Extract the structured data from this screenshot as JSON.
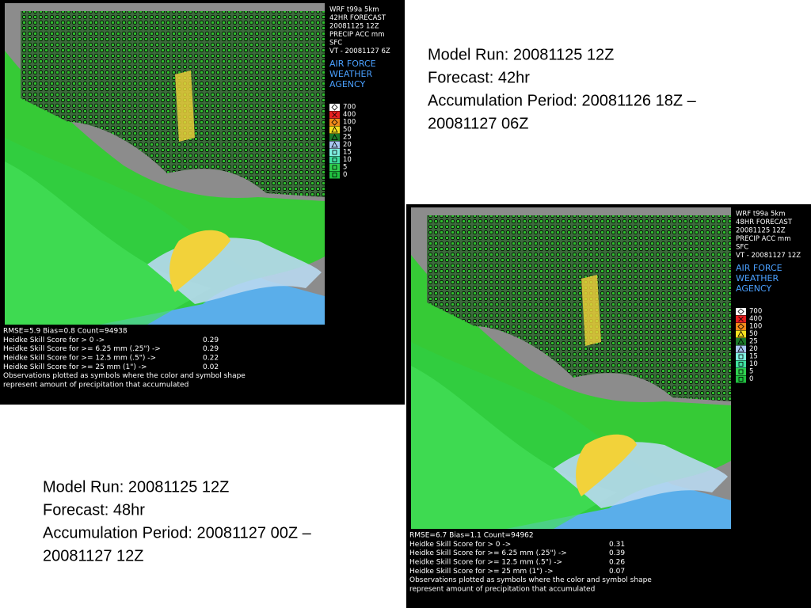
{
  "panels": [
    {
      "header": [
        "WRF t99a 5km",
        "42HR FORECAST",
        "20081125 12Z",
        "PRECIP ACC mm",
        "SFC",
        "VT - 20081127 6Z"
      ],
      "agency": [
        "AIR FORCE",
        "WEATHER",
        "AGENCY"
      ],
      "legend": [
        "700",
        "400",
        "100",
        "50",
        "25",
        "20",
        "15",
        "10",
        "5",
        "0"
      ],
      "stats": {
        "summary": "RMSE=5.9 Bias=0.8 Count=94938",
        "scores": [
          {
            "label": "Heidke Skill Score for >  0   ->",
            "value": "0.29"
          },
          {
            "label": "Heidke Skill Score for >= 6.25 mm (.25\") ->",
            "value": "0.29"
          },
          {
            "label": "Heidke Skill Score for >= 12.5 mm (.5\") ->",
            "value": "0.22"
          },
          {
            "label": "Heidke Skill Score for >= 25 mm (1\") ->",
            "value": "0.02"
          }
        ],
        "notes": [
          "Observations plotted as symbols where the color and symbol shape",
          "represent amount of precipitation that accumulated"
        ]
      }
    },
    {
      "header": [
        "WRF t99a 5km",
        "48HR FORECAST",
        "20081125 12Z",
        "PRECIP ACC mm",
        "SFC",
        "VT - 20081127 12Z"
      ],
      "agency": [
        "AIR FORCE",
        "WEATHER",
        "AGENCY"
      ],
      "legend": [
        "700",
        "400",
        "100",
        "50",
        "25",
        "20",
        "15",
        "10",
        "5",
        "0"
      ],
      "stats": {
        "summary": "RMSE=6.7 Bias=1.1 Count=94962",
        "scores": [
          {
            "label": "Heidke Skill Score for >  0   ->",
            "value": "0.31"
          },
          {
            "label": "Heidke Skill Score for >= 6.25 mm (.25\") ->",
            "value": "0.39"
          },
          {
            "label": "Heidke Skill Score for >= 12.5 mm (.5\") ->",
            "value": "0.26"
          },
          {
            "label": "Heidke Skill Score for >= 25 mm (1\") ->",
            "value": "0.07"
          }
        ],
        "notes": [
          "Observations plotted as symbols where the color and symbol shape",
          "represent amount of precipitation that accumulated"
        ]
      }
    }
  ],
  "captions": [
    {
      "lines": [
        "Model Run: 20081125 12Z",
        "Forecast: 42hr",
        "Accumulation Period: 20081126 18Z –",
        "20081127 06Z"
      ]
    },
    {
      "lines": [
        "Model Run: 20081125 12Z",
        "Forecast: 48hr",
        "Accumulation Period: 20081127 00Z –",
        "20081127 12Z"
      ]
    }
  ]
}
